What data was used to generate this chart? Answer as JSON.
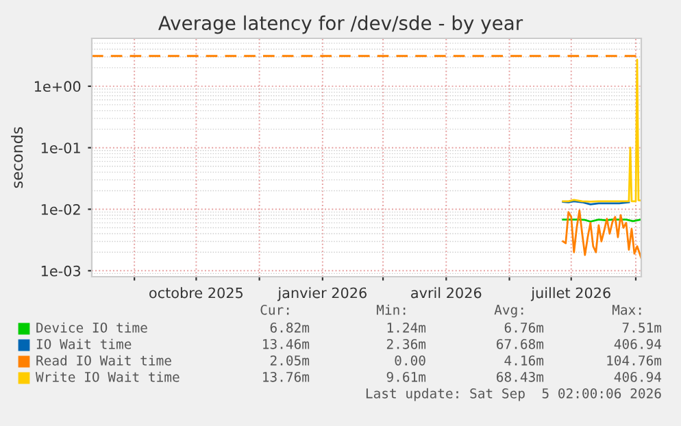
{
  "chart_data": {
    "type": "line",
    "title": "Average latency for /dev/sde - by year",
    "ylabel": "seconds",
    "log": "y",
    "grid": true,
    "legend": "bottom",
    "xlim": [
      "2025-08-01",
      "2026-09-05"
    ],
    "xticks": [
      {
        "value": "2025-09-01",
        "label": null
      },
      {
        "value": "2025-10-16",
        "label": "octobre 2025"
      },
      {
        "value": "2025-12-01",
        "label": null
      },
      {
        "value": "2026-01-16",
        "label": "janvier 2026"
      },
      {
        "value": "2026-03-01",
        "label": null
      },
      {
        "value": "2026-04-16",
        "label": "avril 2026"
      },
      {
        "value": "2026-06-01",
        "label": null
      },
      {
        "value": "2026-07-16",
        "label": "juillet 2026"
      },
      {
        "value": "2026-09-01",
        "label": null
      }
    ],
    "ylim": [
      0.0008,
      6
    ],
    "yticks": [
      {
        "value": 0.001,
        "label": "1e-03"
      },
      {
        "value": 0.01,
        "label": "1e-02"
      },
      {
        "value": 0.1,
        "label": "1e-01"
      },
      {
        "value": 1,
        "label": "1e+00"
      }
    ],
    "ref_lines": [
      {
        "axis": "y",
        "value": 3.1,
        "label": null,
        "color": "#ff8000",
        "line_style": "dashed"
      }
    ],
    "series": [
      {
        "name": "Device IO time",
        "color": "#00cc00",
        "x": [
          "2026-07-10",
          "2026-07-16",
          "2026-07-22",
          "2026-07-26",
          "2026-07-30",
          "2026-08-05",
          "2026-08-10",
          "2026-08-15",
          "2026-08-20",
          "2026-08-25",
          "2026-08-30",
          "2026-09-05"
        ],
        "values": [
          0.0068,
          0.0068,
          0.0068,
          0.0067,
          0.0063,
          0.0068,
          0.0066,
          0.0068,
          0.0068,
          0.0068,
          0.0064,
          0.0068
        ]
      },
      {
        "name": "IO Wait time",
        "color": "#0066b3",
        "x": [
          "2026-07-10",
          "2026-07-14",
          "2026-07-18",
          "2026-07-24",
          "2026-07-30",
          "2026-08-05",
          "2026-08-12",
          "2026-08-20",
          "2026-08-27"
        ],
        "values": [
          0.0132,
          0.013,
          0.0135,
          0.013,
          0.012,
          0.0125,
          0.0125,
          0.0125,
          0.013
        ]
      },
      {
        "name": "Read IO Wait time",
        "color": "#ff8000",
        "x": [
          "2026-07-10",
          "2026-07-12",
          "2026-07-14",
          "2026-07-16",
          "2026-07-18",
          "2026-07-20",
          "2026-07-22",
          "2026-07-24",
          "2026-07-26",
          "2026-07-28",
          "2026-07-30",
          "2026-08-01",
          "2026-08-03",
          "2026-08-05",
          "2026-08-07",
          "2026-08-09",
          "2026-08-11",
          "2026-08-13",
          "2026-08-15",
          "2026-08-17",
          "2026-08-19",
          "2026-08-21",
          "2026-08-23",
          "2026-08-25",
          "2026-08-27",
          "2026-08-29",
          "2026-08-31",
          "2026-09-02",
          "2026-09-05"
        ],
        "values": [
          0.003,
          0.0028,
          0.009,
          0.0075,
          0.002,
          0.005,
          0.0095,
          0.004,
          0.0018,
          0.0035,
          0.006,
          0.0025,
          0.002,
          0.0055,
          0.003,
          0.0045,
          0.007,
          0.004,
          0.0062,
          0.0075,
          0.0035,
          0.008,
          0.005,
          0.006,
          0.0022,
          0.0048,
          0.0019,
          0.0025,
          0.0016
        ]
      },
      {
        "name": "Write IO Wait time",
        "color": "#ffcc00",
        "x": [
          "2026-07-10",
          "2026-07-14",
          "2026-07-18",
          "2026-07-24",
          "2026-07-30",
          "2026-08-05",
          "2026-08-12",
          "2026-08-20",
          "2026-08-27",
          "2026-08-28",
          "2026-08-29",
          "2026-09-01",
          "2026-09-02",
          "2026-09-03",
          "2026-09-05"
        ],
        "values": [
          0.0135,
          0.0135,
          0.0142,
          0.0135,
          0.0133,
          0.0135,
          0.0135,
          0.0135,
          0.0135,
          0.1,
          0.0135,
          0.0135,
          2.7,
          0.014,
          0.0138
        ]
      }
    ],
    "annotations": [
      "Cur:",
      "Min:",
      "Avg:",
      "Max:",
      "6.82m",
      "1.24m",
      "6.76m",
      "7.51m",
      "13.46m",
      "2.36m",
      "67.68m",
      "406.94",
      "2.05m",
      "0.00",
      "4.16m",
      "104.76m",
      "13.76m",
      "9.61m",
      "68.43m",
      "406.94",
      "Last update: Sat Sep  5 02:00:06 2026"
    ]
  }
}
